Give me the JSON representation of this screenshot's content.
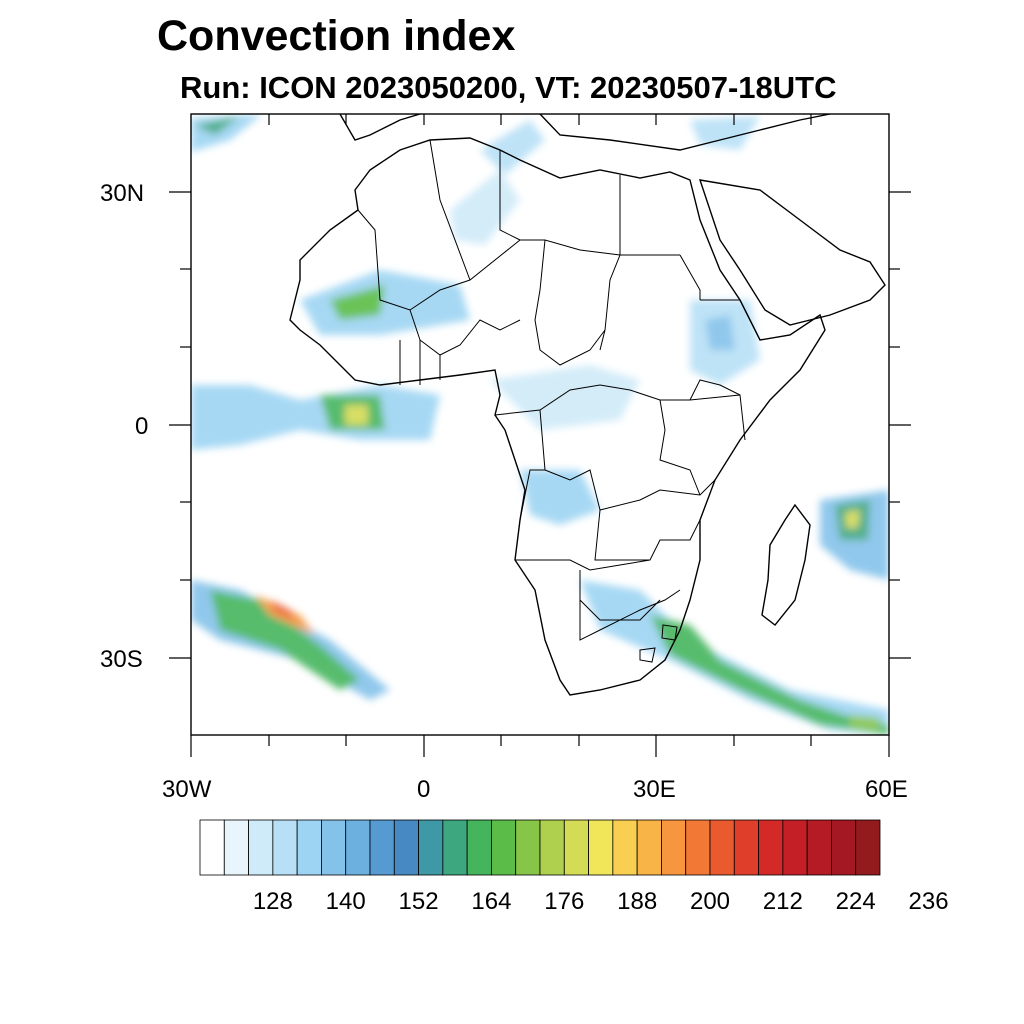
{
  "title": "Convection index",
  "subtitle": "Run: ICON 2023050200,  VT: 20230507-18UTC",
  "map": {
    "lon_range": [
      -30,
      60
    ],
    "lat_range": [
      -40,
      40
    ],
    "lon_tick_labels": [
      "30W",
      "0",
      "30E",
      "60E"
    ],
    "lat_tick_labels": [
      "30N",
      "0",
      "30S"
    ]
  },
  "colorbar": {
    "colors": [
      "#ffffff",
      "#e8f5fc",
      "#cfeaf8",
      "#b7e0f6",
      "#9dd4f3",
      "#84c2ea",
      "#6cb0e0",
      "#559bd2",
      "#4789c2",
      "#3f98a5",
      "#3da77f",
      "#44b55d",
      "#5bbd47",
      "#86c548",
      "#aed04e",
      "#d4db55",
      "#f1e55a",
      "#f9cf52",
      "#f9b448",
      "#f7963e",
      "#f17835",
      "#e95b2e",
      "#df3e2a",
      "#d32a28",
      "#c41f27",
      "#b41b25",
      "#a31822",
      "#931b1e"
    ],
    "labels": [
      "128",
      "140",
      "152",
      "164",
      "176",
      "188",
      "200",
      "212",
      "224",
      "236"
    ]
  }
}
